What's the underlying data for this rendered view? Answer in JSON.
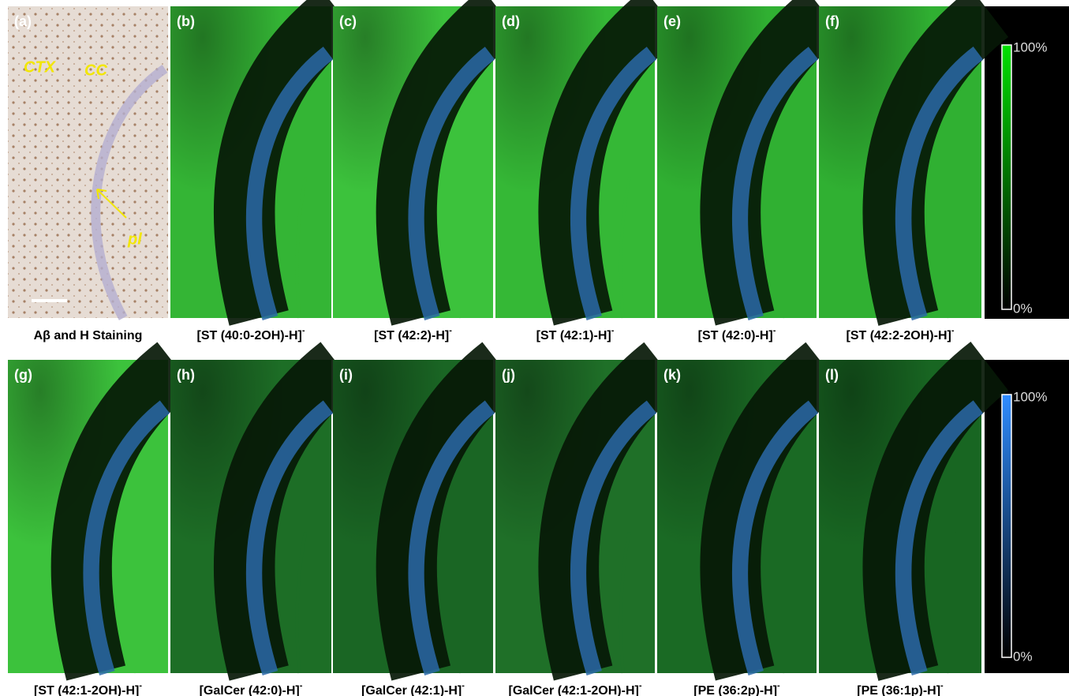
{
  "panels": [
    {
      "letter": "(a)",
      "caption": {
        "text": "Aβ and H Staining"
      }
    },
    {
      "letter": "(b)",
      "caption": {
        "text": "[ST (40:0-2OH)-H]",
        "sup": "-"
      }
    },
    {
      "letter": "(c)",
      "caption": {
        "text": "[ST (42:2)-H]",
        "sup": "-"
      }
    },
    {
      "letter": "(d)",
      "caption": {
        "text": "[ST (42:1)-H]",
        "sup": "-"
      }
    },
    {
      "letter": "(e)",
      "caption": {
        "text": "[ST (42:0)-H]",
        "sup": "-"
      }
    },
    {
      "letter": "(f)",
      "caption": {
        "text": "[ST (42:2-2OH)-H]",
        "sup": "-"
      }
    },
    {
      "letter": "(g)",
      "caption": {
        "text": "[ST (42:1-2OH)-H]",
        "sup": "-"
      }
    },
    {
      "letter": "(h)",
      "caption": {
        "text": "[GalCer (42:0)-H]",
        "sup": "-"
      }
    },
    {
      "letter": "(i)",
      "caption": {
        "text": "[GalCer (42:1)-H]",
        "sup": "-"
      }
    },
    {
      "letter": "(j)",
      "caption": {
        "text": "[GalCer (42:1-2OH)-H]",
        "sup": "-"
      }
    },
    {
      "letter": "(k)",
      "caption": {
        "text": "[PE (36:2p)-H]",
        "sup": "-"
      }
    },
    {
      "letter": "(l)",
      "caption": {
        "text": "[PE (36:1p)-H]",
        "sup": "-"
      }
    }
  ],
  "annotations": [
    "CTX",
    "CC",
    "pl"
  ],
  "colorbars": [
    {
      "max": "100%",
      "min": "0%"
    },
    {
      "max": "100%",
      "min": "0%"
    }
  ]
}
